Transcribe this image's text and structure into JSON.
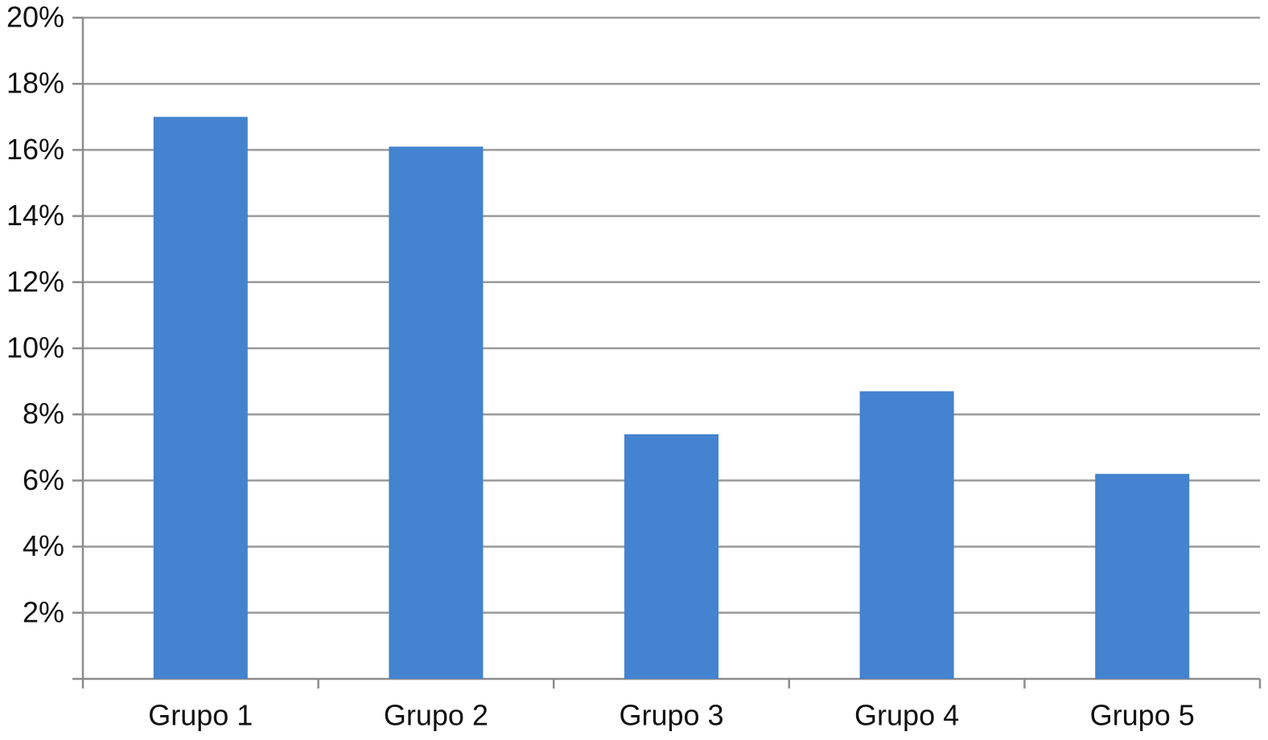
{
  "chart_data": {
    "type": "bar",
    "categories": [
      "Grupo 1",
      "Grupo 2",
      "Grupo 3",
      "Grupo 4",
      "Grupo 5"
    ],
    "values": [
      17.0,
      16.1,
      7.4,
      8.7,
      6.2
    ],
    "color": "#4383cf",
    "ylim": [
      0,
      20
    ],
    "yticks": [
      {
        "value": 2,
        "label": "2%"
      },
      {
        "value": 4,
        "label": "4%"
      },
      {
        "value": 6,
        "label": "6%"
      },
      {
        "value": 8,
        "label": "8%"
      },
      {
        "value": 10,
        "label": "10%"
      },
      {
        "value": 12,
        "label": "12%"
      },
      {
        "value": 14,
        "label": "14%"
      },
      {
        "value": 16,
        "label": "16%"
      },
      {
        "value": 18,
        "label": "18%"
      },
      {
        "value": 20,
        "label": "20%"
      }
    ],
    "grid": true
  }
}
